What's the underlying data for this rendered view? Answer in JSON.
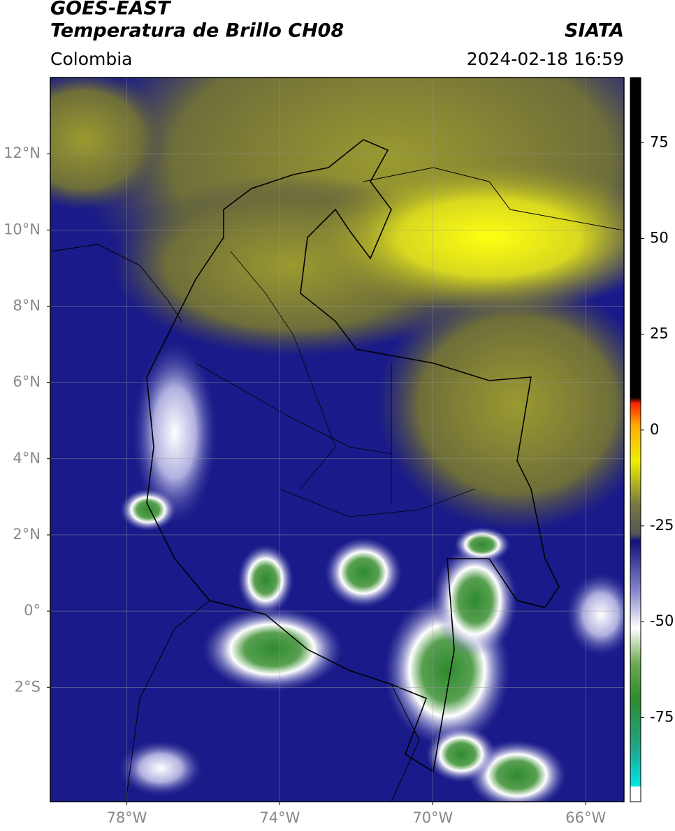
{
  "header": {
    "title": "GOES-EAST",
    "subtitle": "Temperatura de Brillo CH08",
    "source": "SIATA",
    "region": "Colombia",
    "datetime": "2024-02-18 16:59"
  },
  "map": {
    "xlim": [
      -80,
      -65
    ],
    "ylim": [
      -5,
      14
    ],
    "lon_ticks": [
      {
        "value": -78,
        "label": "78°W"
      },
      {
        "value": -74,
        "label": "74°W"
      },
      {
        "value": -70,
        "label": "70°W"
      },
      {
        "value": -66,
        "label": "66°W"
      }
    ],
    "lat_ticks": [
      {
        "value": 12,
        "label": "12°N"
      },
      {
        "value": 10,
        "label": "10°N"
      },
      {
        "value": 8,
        "label": "8°N"
      },
      {
        "value": 6,
        "label": "6°N"
      },
      {
        "value": 4,
        "label": "4°N"
      },
      {
        "value": 2,
        "label": "2°N"
      },
      {
        "value": 0,
        "label": "0°"
      },
      {
        "value": -2,
        "label": "2°S"
      }
    ]
  },
  "colorbar": {
    "lim": [
      -97,
      92
    ],
    "ticks": [
      75,
      50,
      25,
      0,
      -25,
      -50,
      -75
    ]
  }
}
